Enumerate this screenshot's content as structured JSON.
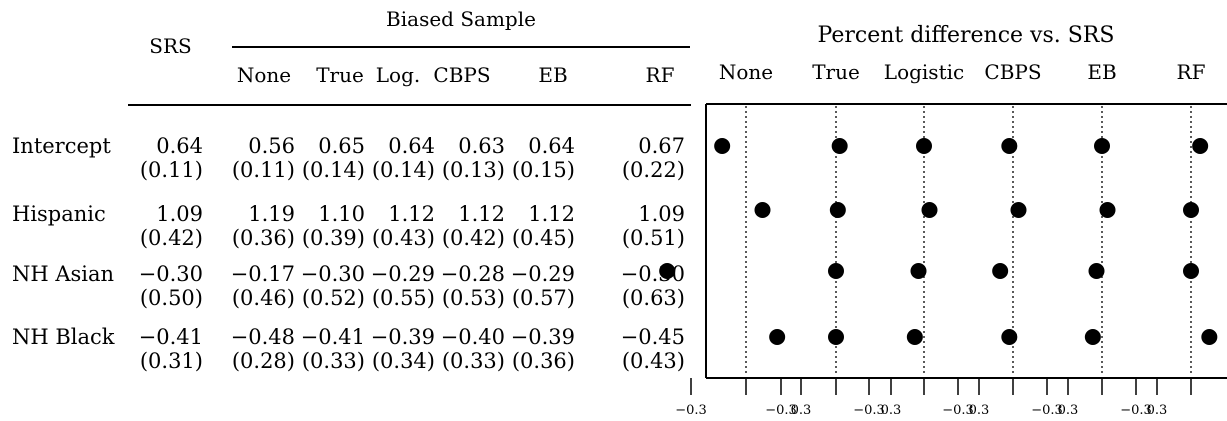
{
  "table": {
    "srs_header": "SRS",
    "biased_header": "Biased Sample",
    "columns": [
      "None",
      "True",
      "Log.",
      "CBPS",
      "EB",
      "RF"
    ],
    "rows": [
      {
        "label": "Intercept",
        "srs": "0.64",
        "srs_se": "(0.11)",
        "est": [
          "0.56",
          "0.65",
          "0.64",
          "0.63",
          "0.64",
          "0.67"
        ],
        "se": [
          "(0.11)",
          "(0.14)",
          "(0.14)",
          "(0.13)",
          "(0.15)",
          "(0.22)"
        ]
      },
      {
        "label": "Hispanic",
        "srs": "1.09",
        "srs_se": "(0.42)",
        "est": [
          "1.19",
          "1.10",
          "1.12",
          "1.12",
          "1.12",
          "1.09"
        ],
        "se": [
          "(0.36)",
          "(0.39)",
          "(0.43)",
          "(0.42)",
          "(0.45)",
          "(0.51)"
        ]
      },
      {
        "label": "NH Asian",
        "srs": "−0.30",
        "srs_se": "(0.50)",
        "est": [
          "−0.17",
          "−0.30",
          "−0.29",
          "−0.28",
          "−0.29",
          "−0.30"
        ],
        "se": [
          "(0.46)",
          "(0.52)",
          "(0.55)",
          "(0.53)",
          "(0.57)",
          "(0.63)"
        ]
      },
      {
        "label": "NH Black",
        "srs": "−0.41",
        "srs_se": "(0.31)",
        "est": [
          "−0.48",
          "−0.41",
          "−0.39",
          "−0.40",
          "−0.39",
          "−0.45"
        ],
        "se": [
          "(0.28)",
          "(0.33)",
          "(0.34)",
          "(0.33)",
          "(0.36)",
          "(0.43)"
        ]
      }
    ]
  },
  "chart_data": {
    "type": "scatter",
    "title": "Percent difference vs. SRS",
    "panels": [
      "None",
      "True",
      "Logistic",
      "CBPS",
      "EB",
      "RF"
    ],
    "rows": [
      "Intercept",
      "Hispanic",
      "NH Asian",
      "NH Black"
    ],
    "x_ticks": [
      -0.3,
      0.3
    ],
    "tick_labels": [
      "−0.3",
      "0.3"
    ],
    "xlim": [
      -0.5,
      0.5
    ],
    "reference_line": 0,
    "values": [
      [
        -0.13,
        0.02,
        0.0,
        -0.02,
        0.0,
        0.05
      ],
      [
        0.09,
        0.01,
        0.03,
        0.03,
        0.03,
        0.0
      ],
      [
        -0.43,
        0.0,
        -0.03,
        -0.07,
        -0.03,
        0.0
      ],
      [
        0.17,
        0.0,
        -0.05,
        -0.02,
        -0.05,
        0.1
      ]
    ],
    "grid": false,
    "legend": "none"
  }
}
